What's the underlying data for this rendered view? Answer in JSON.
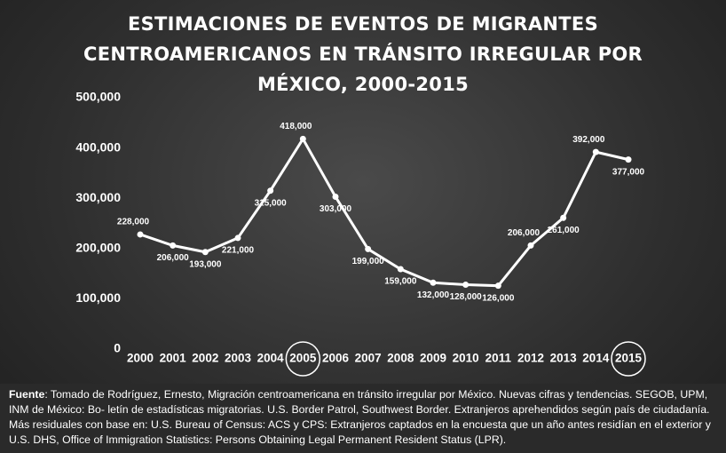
{
  "chart_data": {
    "type": "line",
    "title": "ESTIMACIONES DE EVENTOS DE MIGRANTES CENTROAMERICANOS EN TRÁNSITO IRREGULAR POR MÉXICO, 2000-2015",
    "categories": [
      "2000",
      "2001",
      "2002",
      "2003",
      "2004",
      "2005",
      "2006",
      "2007",
      "2008",
      "2009",
      "2010",
      "2011",
      "2012",
      "2013",
      "2014",
      "2015"
    ],
    "values": [
      228000,
      206000,
      193000,
      221000,
      315000,
      418000,
      303000,
      199000,
      159000,
      132000,
      128000,
      126000,
      206000,
      261000,
      392000,
      377000
    ],
    "value_labels": [
      "228,000",
      "206,000",
      "193,000",
      "221,000",
      "315,000",
      "418,000",
      "303,000",
      "199,000",
      "159,000",
      "132,000",
      "128,000",
      "126,000",
      "206,000",
      "261,000",
      "392,000",
      "377,000"
    ],
    "color": "#ffffff",
    "ylim": [
      0,
      500000
    ],
    "yticks": [
      0,
      {
        "value": 100000,
        "label": "100,000"
      },
      {
        "value": 200000,
        "label": "200,000"
      },
      {
        "value": 300000,
        "label": "300,000"
      },
      {
        "value": 400000,
        "label": "400,000"
      },
      {
        "value": 500000,
        "label": "500,000"
      }
    ],
    "highlight": [
      5,
      15
    ],
    "source_label": "Fuente",
    "source": ": Tomado de Rodríguez, Ernesto, Migración centroamericana en tránsito irregular por México. Nuevas cifras y tendencias. SEGOB, UPM, INM de México: Bo- letín de estadísticas migratorias. U.S. Border Patrol, Southwest Border. Extranjeros aprehendidos según país de ciudadanía. Más residuales con base en: U.S. Bureau of Census: ACS y CPS: Extranjeros captados en la encuesta que un año antes residían en el exterior y U.S. DHS, Office of Immigration Statistics: Persons Obtaining Legal Permanent Resident Status (LPR)."
  }
}
